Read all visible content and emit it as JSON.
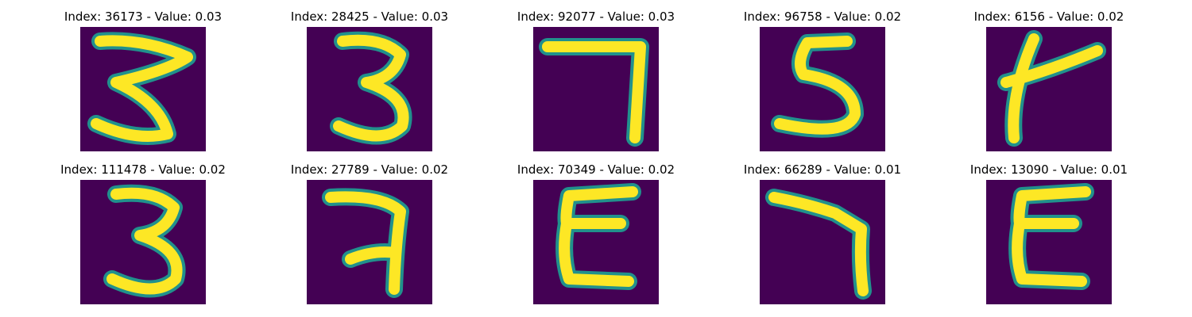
{
  "figure": {
    "background_color": "#440154",
    "stroke_color": "#fde725",
    "edge_color": "#21918c",
    "panels": [
      {
        "index": "36173",
        "value": "0.03",
        "title": "Index: 36173 - Value: 0.03",
        "glyph": "3-open"
      },
      {
        "index": "28425",
        "value": "0.03",
        "title": "Index: 28425 - Value: 0.03",
        "glyph": "3"
      },
      {
        "index": "92077",
        "value": "0.03",
        "title": "Index: 92077 - Value: 0.03",
        "glyph": "7"
      },
      {
        "index": "96758",
        "value": "0.02",
        "title": "Index: 96758 - Value: 0.02",
        "glyph": "5"
      },
      {
        "index": "6156",
        "value": "0.02",
        "title": "Index: 6156 - Value: 0.02",
        "glyph": "y"
      },
      {
        "index": "111478",
        "value": "0.02",
        "title": "Index: 111478 - Value: 0.02",
        "glyph": "3"
      },
      {
        "index": "27789",
        "value": "0.02",
        "title": "Index: 27789 - Value: 0.02",
        "glyph": "7-bar"
      },
      {
        "index": "70349",
        "value": "0.02",
        "title": "Index: 70349 - Value: 0.02",
        "glyph": "E"
      },
      {
        "index": "66289",
        "value": "0.01",
        "title": "Index: 66289 - Value: 0.01",
        "glyph": "7-bent"
      },
      {
        "index": "13090",
        "value": "0.01",
        "title": "Index: 13090 - Value: 0.01",
        "glyph": "E"
      }
    ]
  }
}
